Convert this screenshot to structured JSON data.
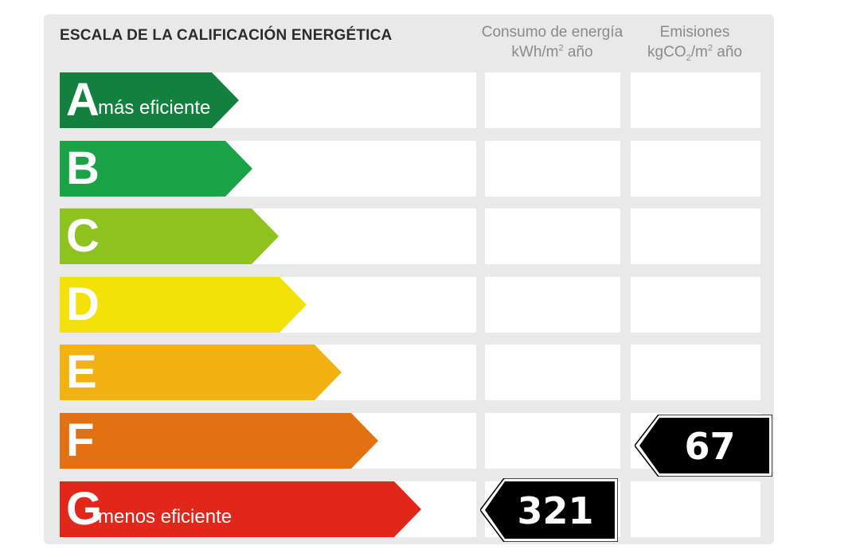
{
  "title": "ESCALA DE LA CALIFICACIÓN ENERGÉTICA",
  "columns": {
    "consumo": {
      "line1": "Consumo de energía",
      "line2_pre": "kWh/m",
      "line2_sup": "2",
      "line2_post": " año"
    },
    "emisiones": {
      "line1": "Emisiones",
      "line2_pre": "kgCO",
      "line2_sub": "2",
      "line2_mid": "/m",
      "line2_sup": "2",
      "line2_post": " año"
    }
  },
  "ratings": [
    {
      "letter": "A",
      "label": "más eficiente",
      "color": "#13803f"
    },
    {
      "letter": "B",
      "label": "",
      "color": "#1aa246"
    },
    {
      "letter": "C",
      "label": "",
      "color": "#8dc21f"
    },
    {
      "letter": "D",
      "label": "",
      "color": "#f2e20a"
    },
    {
      "letter": "E",
      "label": "",
      "color": "#f2b312"
    },
    {
      "letter": "F",
      "label": "",
      "color": "#e27211"
    },
    {
      "letter": "G",
      "label": "menos eficiente",
      "color": "#e1261a"
    }
  ],
  "results": {
    "consumo": {
      "value": "321",
      "rating": "G"
    },
    "emisiones": {
      "value": "67",
      "rating": "F"
    }
  },
  "colors": {
    "marker": "#000000",
    "card": "#e9e9e9"
  }
}
